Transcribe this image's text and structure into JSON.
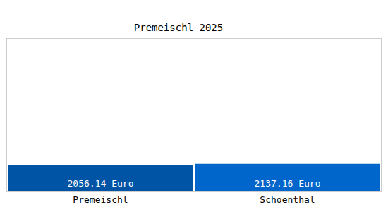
{
  "chart_data": {
    "type": "bar",
    "title": "Premeischl 2025",
    "categories": [
      "Premeischl",
      "Schoenthal"
    ],
    "values": [
      2056.14,
      2137.16
    ],
    "value_labels": [
      "2056.14 Euro",
      "2137.16 Euro"
    ],
    "colors": [
      "#0054a6",
      "#0066cc"
    ],
    "ylim": [
      0,
      12000
    ],
    "yticks": [],
    "grid": false,
    "data_labels": true,
    "tick_labels": "x"
  }
}
